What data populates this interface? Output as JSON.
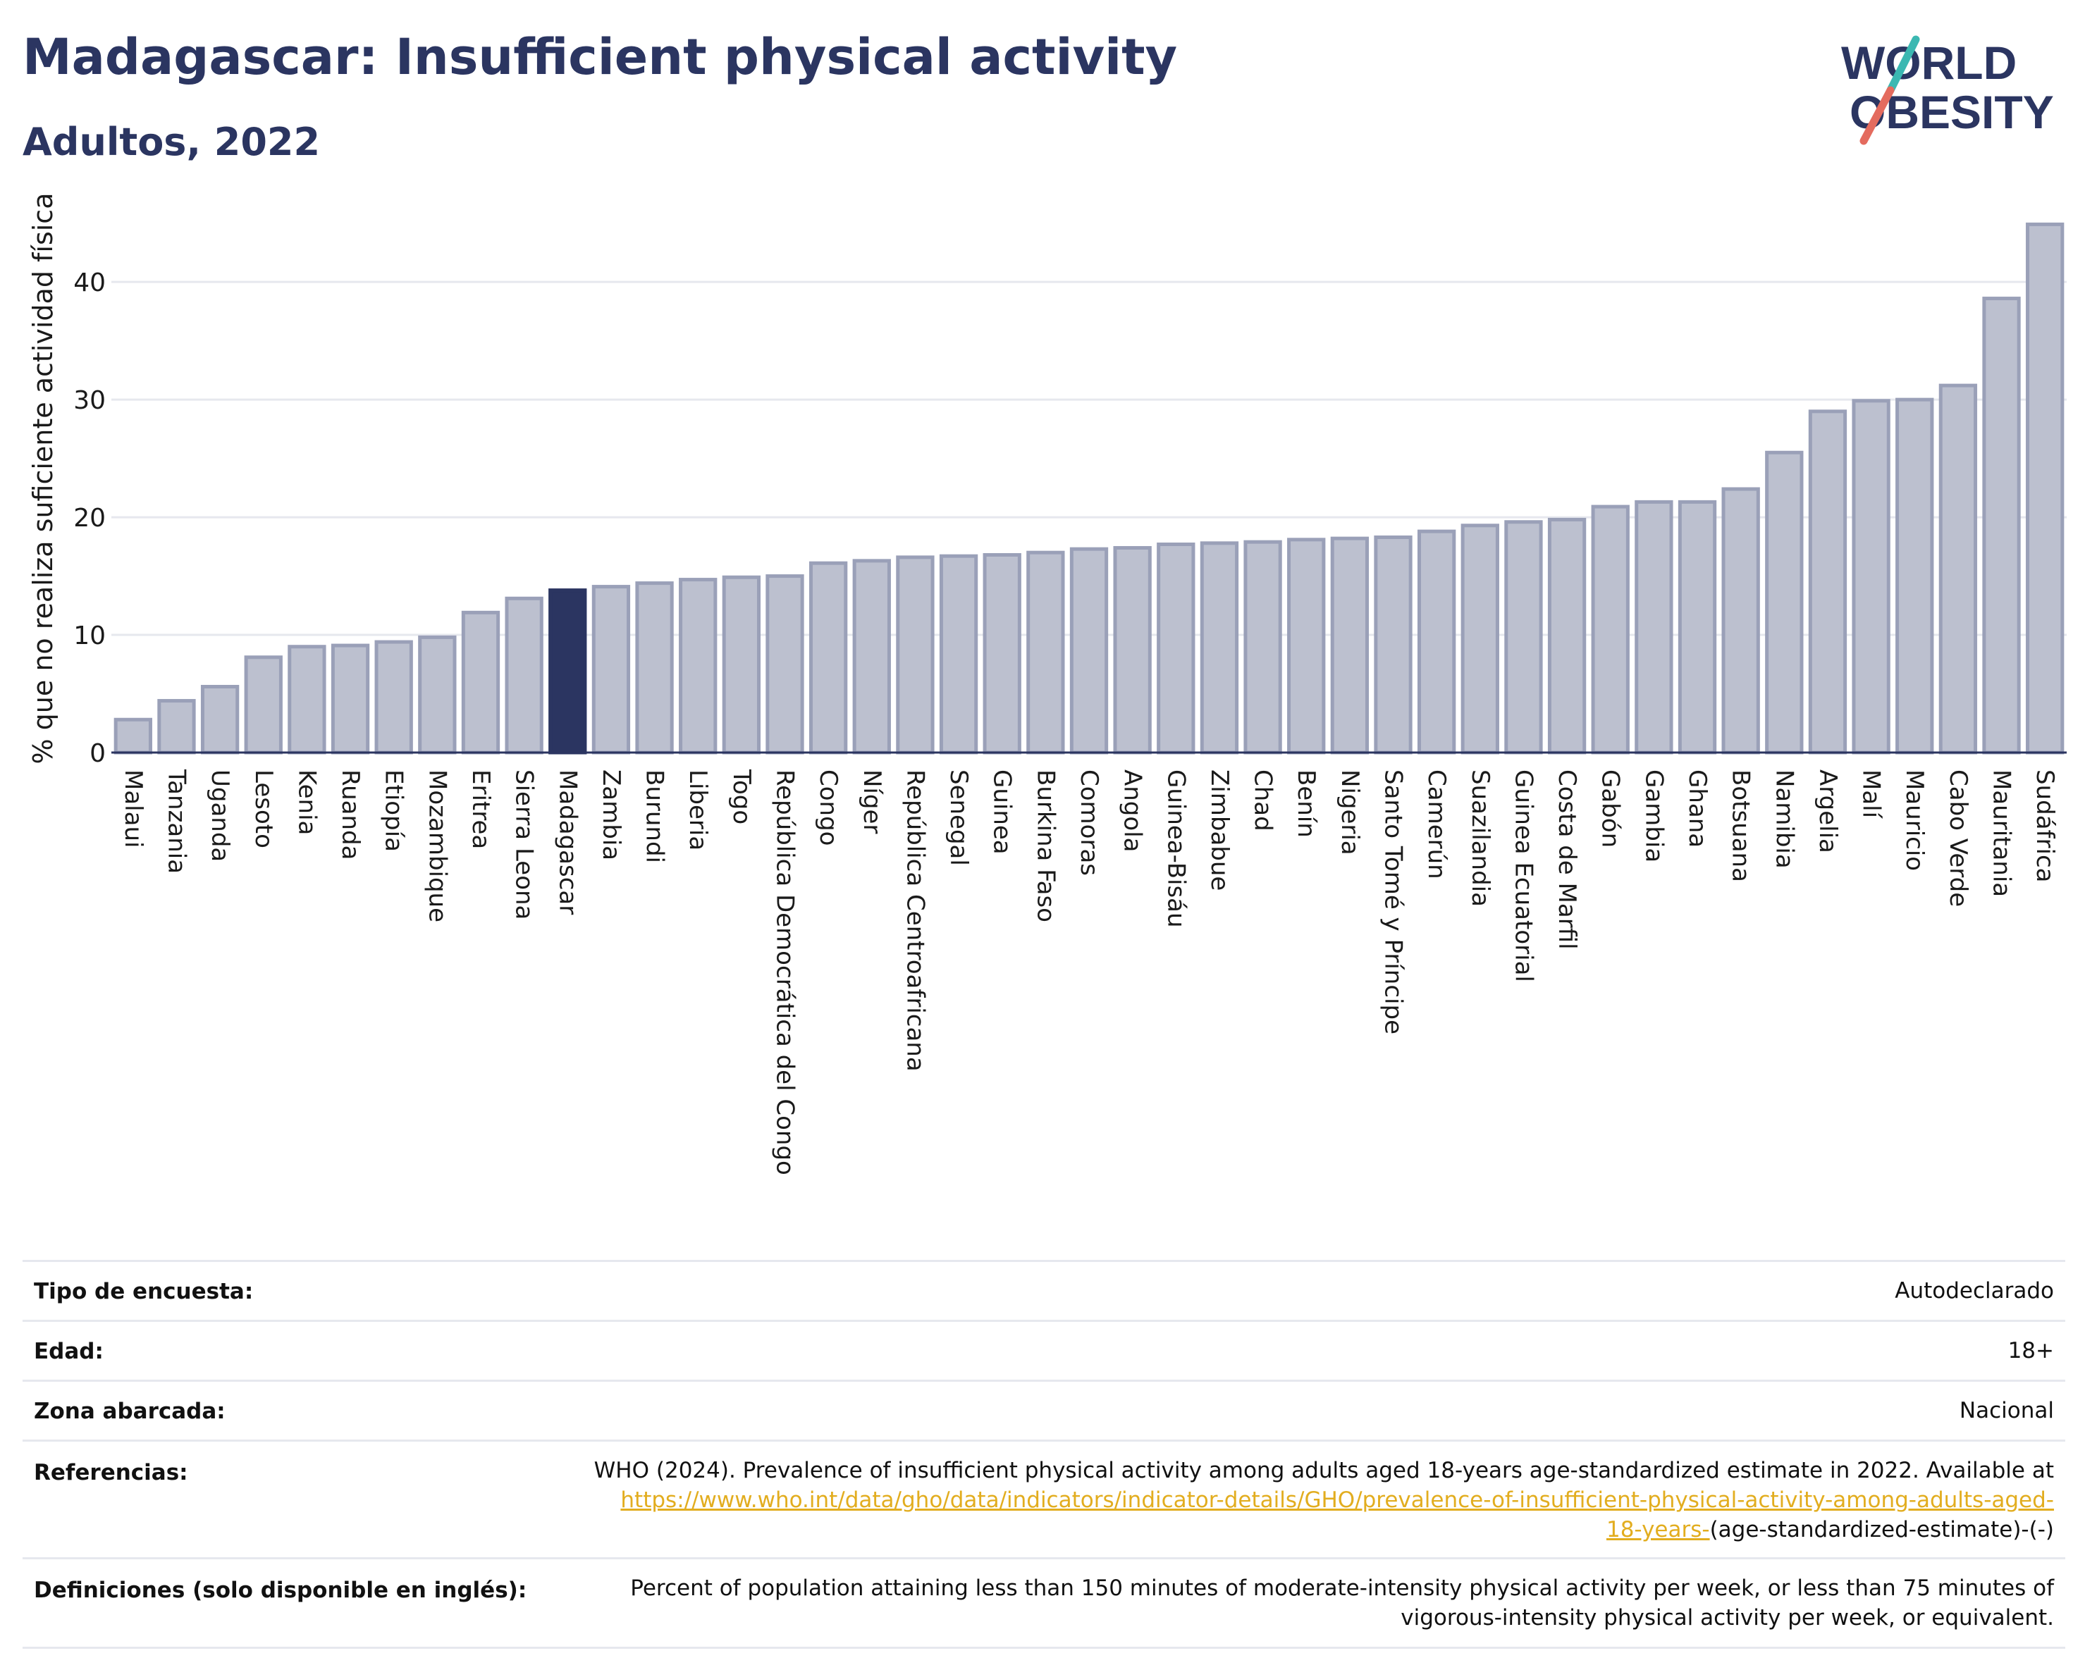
{
  "header": {
    "title": "Madagascar: Insufficient physical activity",
    "subtitle": "Adultos, 2022",
    "logo_line1": "WORLD",
    "logo_line2": "OBESITY"
  },
  "colors": {
    "title": "#2b3561",
    "bar": "#bcc0cf",
    "bar_stroke": "#9aa0b8",
    "highlight": "#2b3561",
    "grid": "#e6e8ee",
    "link": "#e2ad1f",
    "logo_slash_top": "#3bb8b2",
    "logo_slash_bottom": "#e46b5e"
  },
  "chart_data": {
    "type": "bar",
    "ylabel": "% que no realiza suficiente actividad física",
    "ylim": [
      0,
      46
    ],
    "yticks": [
      0,
      10,
      20,
      30,
      40
    ],
    "grid": true,
    "highlight": "Madagascar",
    "categories": [
      "Malaui",
      "Tanzania",
      "Uganda",
      "Lesoto",
      "Kenia",
      "Ruanda",
      "Etiopía",
      "Mozambique",
      "Eritrea",
      "Sierra Leona",
      "Madagascar",
      "Zambia",
      "Burundi",
      "Liberia",
      "Togo",
      "República Democrática del Congo",
      "Congo",
      "Níger",
      "República Centroafricana",
      "Senegal",
      "Guinea",
      "Burkina Faso",
      "Comoras",
      "Angola",
      "Guinea-Bisáu",
      "Zimbabue",
      "Chad",
      "Benín",
      "Nigeria",
      "Santo Tomé y Príncipe",
      "Camerún",
      "Suazilandia",
      "Guinea Ecuatorial",
      "Costa de Marfil",
      "Gabón",
      "Gambia",
      "Ghana",
      "Botsuana",
      "Namibia",
      "Argelia",
      "Malí",
      "Mauricio",
      "Cabo Verde",
      "Mauritania",
      "Sudáfrica"
    ],
    "values": [
      2.8,
      4.4,
      5.6,
      8.1,
      9.0,
      9.1,
      9.4,
      9.8,
      11.9,
      13.1,
      13.8,
      14.1,
      14.4,
      14.7,
      14.9,
      15.0,
      16.1,
      16.3,
      16.6,
      16.7,
      16.8,
      17.0,
      17.3,
      17.4,
      17.7,
      17.8,
      17.9,
      18.1,
      18.2,
      18.3,
      18.8,
      19.3,
      19.6,
      19.8,
      20.9,
      21.3,
      21.3,
      22.4,
      25.5,
      29.0,
      29.9,
      30.0,
      31.2,
      38.6,
      44.9
    ]
  },
  "info_table": {
    "rows": [
      {
        "label": "Tipo de encuesta:",
        "value": "Autodeclarado"
      },
      {
        "label": "Edad:",
        "value": "18+"
      },
      {
        "label": "Zona abarcada:",
        "value": "Nacional"
      },
      {
        "label": "Referencias:",
        "value_pre": "WHO (2024). Prevalence of insufficient physical activity among adults aged 18-years age-standardized estimate in 2022. Available at",
        "link_part1": "https://www.who.int/data/gho/data/indicators/indicator-details/GHO/prevalence-of-insufficient-physical-activity-among-adults-aged-",
        "link_part2": "18-years-",
        "value_post": "(age-standardized-estimate)-(-)"
      },
      {
        "label": "Definiciones (solo disponible en inglés):",
        "value_line1": "Percent of population attaining less than 150 minutes of moderate-intensity physical activity per week, or less than 75 minutes of",
        "value_line2": "vigorous-intensity physical activity per week, or equivalent."
      }
    ]
  }
}
